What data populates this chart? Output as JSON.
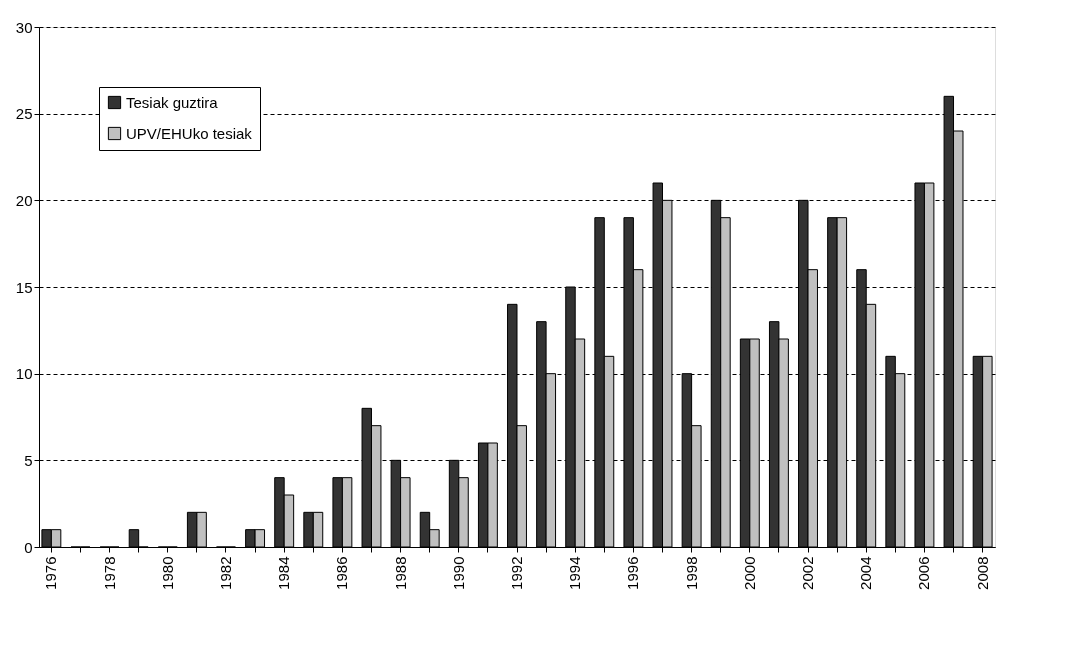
{
  "chart_data": {
    "type": "bar",
    "categories": [
      "1976",
      null,
      "1978",
      null,
      "1980",
      null,
      "1982",
      null,
      "1984",
      null,
      "1986",
      null,
      "1988",
      null,
      "1990",
      null,
      "1992",
      null,
      "1994",
      null,
      "1996",
      null,
      "1998",
      null,
      "2000",
      null,
      "2002",
      null,
      "2004",
      null,
      "2006",
      null,
      "2008"
    ],
    "series": [
      {
        "name": "Tesiak guztira",
        "color": "#333333",
        "values": [
          1,
          0,
          0,
          1,
          0,
          2,
          0,
          1,
          4,
          2,
          4,
          8,
          5,
          2,
          5,
          6,
          14,
          13,
          15,
          19,
          19,
          21,
          10,
          20,
          12,
          13,
          20,
          19,
          16,
          11,
          21,
          26,
          11
        ]
      },
      {
        "name": "UPV/EHUko tesiak",
        "color": "#c0c0c0",
        "values": [
          1,
          0,
          0,
          0,
          0,
          2,
          0,
          1,
          3,
          2,
          4,
          7,
          4,
          1,
          4,
          6,
          7,
          10,
          12,
          11,
          16,
          20,
          7,
          19,
          12,
          12,
          16,
          19,
          14,
          10,
          21,
          24,
          11
        ]
      }
    ],
    "ylim": [
      0,
      30
    ],
    "yticks": [
      0,
      5,
      10,
      15,
      20,
      25,
      30
    ],
    "grid": "y",
    "legend": "top left"
  }
}
